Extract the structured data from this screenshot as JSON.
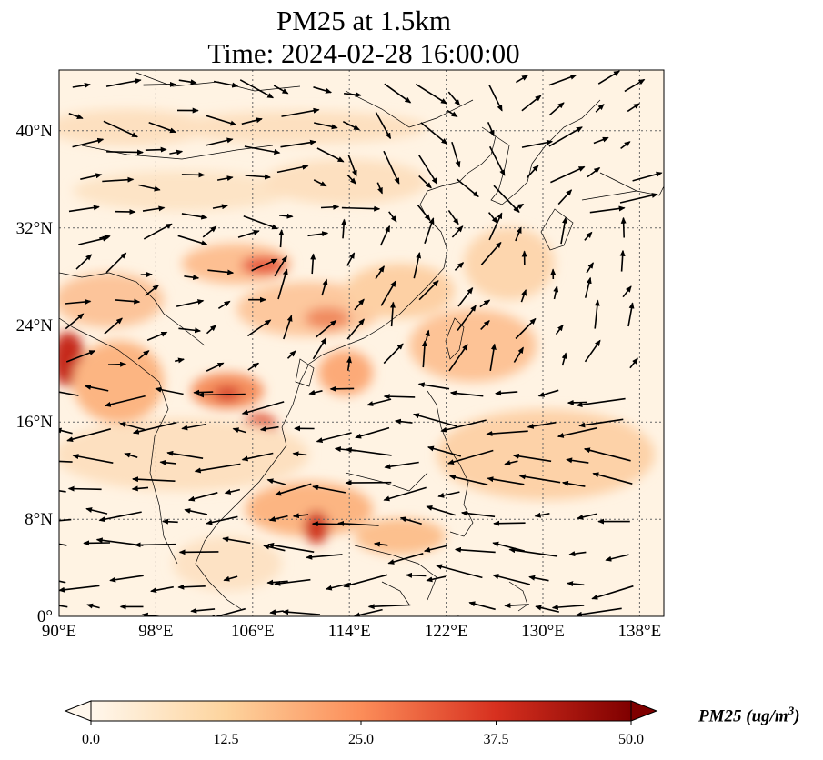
{
  "title": {
    "line1": "PM25 at 1.5km",
    "line2": "Time: 2024-02-28 16:00:00"
  },
  "map": {
    "lon_range": [
      90,
      140
    ],
    "lat_range": [
      0,
      45
    ],
    "lon_ticks": [
      "90°E",
      "98°E",
      "106°E",
      "114°E",
      "122°E",
      "130°E",
      "138°E"
    ],
    "lat_ticks": [
      "0°",
      "8°N",
      "16°N",
      "24°N",
      "32°N",
      "40°N"
    ],
    "gridlines": true
  },
  "colorbar": {
    "ticks": [
      "0.0",
      "12.5",
      "25.0",
      "37.5",
      "50.0"
    ],
    "range": [
      0,
      50
    ],
    "label_main": "PM25 (ug/m",
    "label_sup": "3",
    "label_end": ")",
    "colormap": "OrRd"
  }
}
